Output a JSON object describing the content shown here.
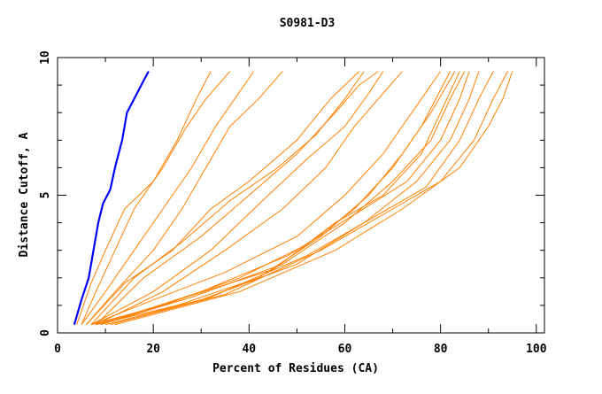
{
  "chart_data": {
    "type": "line",
    "title": "S0981-D3",
    "xlabel": "Percent of Residues (CA)",
    "ylabel": "Distance Cutoff, A",
    "xlim": [
      0,
      101.7
    ],
    "ylim": [
      0,
      10
    ],
    "xticks": [
      0,
      20,
      40,
      60,
      80,
      100
    ],
    "yticks": [
      0,
      5,
      10
    ],
    "grid": false,
    "colors": {
      "highlight": "#0000ff",
      "others": "#ff8000"
    },
    "highlight_series": {
      "points": [
        [
          3.5,
          0.3
        ],
        [
          5,
          1.2
        ],
        [
          6.5,
          2
        ],
        [
          7.5,
          3
        ],
        [
          8.5,
          4
        ],
        [
          9.5,
          4.7
        ],
        [
          11,
          5.2
        ],
        [
          12,
          6
        ],
        [
          13.5,
          7
        ],
        [
          14.5,
          8
        ],
        [
          16,
          8.5
        ],
        [
          17.5,
          9
        ],
        [
          19,
          9.5
        ]
      ]
    },
    "other_series": [
      [
        [
          4,
          0.3
        ],
        [
          7,
          1.8
        ],
        [
          10,
          3
        ],
        [
          14,
          4.5
        ],
        [
          20,
          5.5
        ],
        [
          25,
          7
        ],
        [
          29,
          8.5
        ],
        [
          32,
          9.5
        ]
      ],
      [
        [
          5,
          0.3
        ],
        [
          8,
          1.5
        ],
        [
          12,
          3
        ],
        [
          16,
          4.5
        ],
        [
          22,
          6
        ],
        [
          27,
          7.5
        ],
        [
          31,
          8.5
        ],
        [
          36,
          9.5
        ]
      ],
      [
        [
          5,
          0.3
        ],
        [
          10,
          1.5
        ],
        [
          16,
          3
        ],
        [
          22,
          4.5
        ],
        [
          28,
          6
        ],
        [
          33,
          7.5
        ],
        [
          37,
          8.5
        ],
        [
          41,
          9.5
        ]
      ],
      [
        [
          6,
          0.3
        ],
        [
          12,
          1.5
        ],
        [
          20,
          3
        ],
        [
          26,
          4.5
        ],
        [
          31,
          6
        ],
        [
          36,
          7.5
        ],
        [
          42,
          8.5
        ],
        [
          47,
          9.5
        ]
      ],
      [
        [
          6,
          0.3
        ],
        [
          14,
          1.8
        ],
        [
          24,
          3
        ],
        [
          32,
          4.5
        ],
        [
          40,
          5.5
        ],
        [
          50,
          7
        ],
        [
          57,
          8.5
        ],
        [
          63,
          9.5
        ]
      ],
      [
        [
          7,
          0.3
        ],
        [
          16,
          2
        ],
        [
          26,
          3.3
        ],
        [
          36,
          4.8
        ],
        [
          46,
          6
        ],
        [
          54,
          7.2
        ],
        [
          60,
          8.5
        ],
        [
          64,
          9.5
        ]
      ],
      [
        [
          8,
          0.3
        ],
        [
          18,
          2
        ],
        [
          30,
          3.5
        ],
        [
          40,
          5
        ],
        [
          50,
          6.5
        ],
        [
          58,
          8
        ],
        [
          63,
          9
        ],
        [
          67,
          9.5
        ]
      ],
      [
        [
          7,
          0.3
        ],
        [
          20,
          1.5
        ],
        [
          32,
          3
        ],
        [
          44,
          5
        ],
        [
          52,
          6.3
        ],
        [
          60,
          7.5
        ],
        [
          65,
          8.7
        ],
        [
          68,
          9.5
        ]
      ],
      [
        [
          8,
          0.3
        ],
        [
          22,
          1.5
        ],
        [
          35,
          3
        ],
        [
          47,
          4.5
        ],
        [
          56,
          6
        ],
        [
          62,
          7.5
        ],
        [
          67,
          8.5
        ],
        [
          72,
          9.5
        ]
      ],
      [
        [
          7,
          0.3
        ],
        [
          20,
          1.2
        ],
        [
          35,
          2.2
        ],
        [
          50,
          3.5
        ],
        [
          60,
          5
        ],
        [
          68,
          6.5
        ],
        [
          74,
          8
        ],
        [
          80,
          9.5
        ]
      ],
      [
        [
          7,
          0.3
        ],
        [
          22,
          1
        ],
        [
          38,
          2
        ],
        [
          52,
          3.2
        ],
        [
          62,
          4.5
        ],
        [
          70,
          6
        ],
        [
          76,
          7.5
        ],
        [
          82,
          9.5
        ]
      ],
      [
        [
          8,
          0.3
        ],
        [
          25,
          1
        ],
        [
          42,
          2
        ],
        [
          55,
          3.5
        ],
        [
          65,
          5
        ],
        [
          72,
          6.5
        ],
        [
          78,
          8
        ],
        [
          83,
          9.5
        ]
      ],
      [
        [
          8,
          0.3
        ],
        [
          25,
          1.2
        ],
        [
          45,
          2.3
        ],
        [
          58,
          4
        ],
        [
          68,
          5
        ],
        [
          76,
          6.5
        ],
        [
          80,
          8
        ],
        [
          84,
          9.5
        ]
      ],
      [
        [
          9,
          0.3
        ],
        [
          28,
          1.3
        ],
        [
          47,
          2.5
        ],
        [
          60,
          4
        ],
        [
          70,
          5.5
        ],
        [
          78,
          7
        ],
        [
          82,
          8.5
        ],
        [
          85,
          9.5
        ]
      ],
      [
        [
          9,
          0.3
        ],
        [
          30,
          1.5
        ],
        [
          48,
          2.8
        ],
        [
          62,
          4.3
        ],
        [
          73,
          5.5
        ],
        [
          80,
          7
        ],
        [
          84,
          8.5
        ],
        [
          86,
          9.5
        ]
      ],
      [
        [
          10,
          0.3
        ],
        [
          30,
          1.2
        ],
        [
          50,
          2.5
        ],
        [
          64,
          4
        ],
        [
          75,
          5.5
        ],
        [
          82,
          7
        ],
        [
          86,
          8.5
        ],
        [
          88,
          9.5
        ]
      ],
      [
        [
          10,
          0.3
        ],
        [
          32,
          1.3
        ],
        [
          52,
          2.8
        ],
        [
          66,
          4.2
        ],
        [
          77,
          5.3
        ],
        [
          84,
          7
        ],
        [
          88,
          8.5
        ],
        [
          91,
          9.5
        ]
      ],
      [
        [
          11,
          0.3
        ],
        [
          35,
          1.4
        ],
        [
          55,
          3
        ],
        [
          70,
          4.5
        ],
        [
          80,
          5.5
        ],
        [
          87,
          7
        ],
        [
          91,
          8.5
        ],
        [
          94,
          9.5
        ]
      ],
      [
        [
          12,
          0.3
        ],
        [
          38,
          1.5
        ],
        [
          58,
          3
        ],
        [
          72,
          4.5
        ],
        [
          84,
          6
        ],
        [
          90,
          7.5
        ],
        [
          93,
          8.5
        ],
        [
          95,
          9.5
        ]
      ]
    ]
  }
}
